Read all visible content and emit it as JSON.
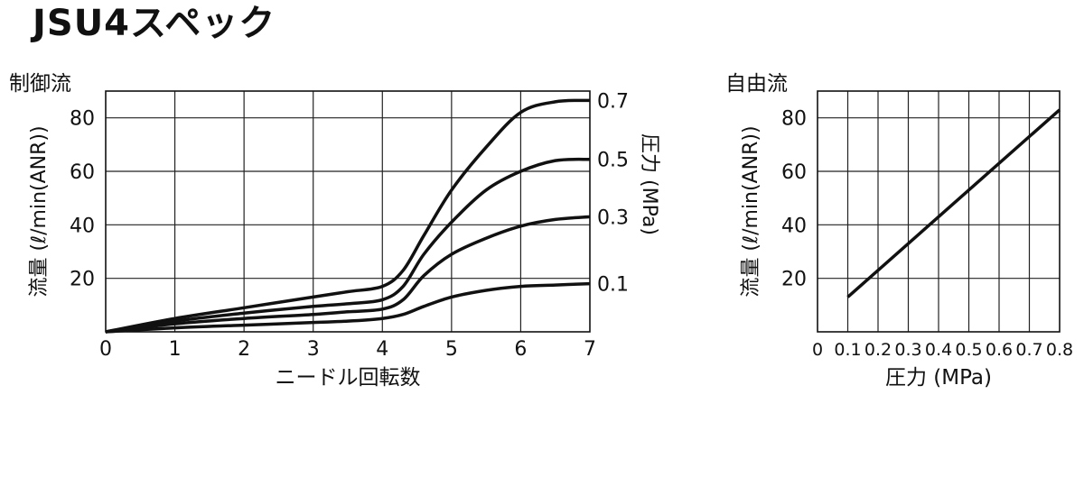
{
  "title": "JSU4スペック",
  "chart_data": [
    {
      "type": "line",
      "title": "制御流",
      "xlabel": "ニードル回転数",
      "ylabel": "流量 (ℓ/min(ANR))",
      "y2label": "圧力 (MPa)",
      "xlim": [
        0,
        7
      ],
      "ylim": [
        0,
        90
      ],
      "xticks": [
        "0",
        "1",
        "2",
        "3",
        "4",
        "5",
        "6",
        "7"
      ],
      "yticks": [
        "20",
        "40",
        "60",
        "80"
      ],
      "grid": true,
      "series": [
        {
          "name": "0.7",
          "x": [
            0,
            1,
            2,
            3,
            3.5,
            4,
            4.3,
            4.6,
            5,
            5.5,
            6,
            6.5,
            7
          ],
          "y": [
            0,
            5,
            9,
            13,
            15,
            17,
            23,
            36,
            53,
            69,
            82,
            86,
            86.5
          ]
        },
        {
          "name": "0.5",
          "x": [
            0,
            1,
            2,
            3,
            3.5,
            4,
            4.3,
            4.6,
            5,
            5.5,
            6,
            6.5,
            7
          ],
          "y": [
            0,
            4,
            7,
            9.5,
            10.5,
            12,
            17,
            29,
            41,
            53,
            60,
            64,
            64.5
          ]
        },
        {
          "name": "0.3",
          "x": [
            0,
            1,
            2,
            3,
            3.5,
            4,
            4.3,
            4.6,
            5,
            5.5,
            6,
            6.5,
            7
          ],
          "y": [
            0,
            3,
            5,
            6.5,
            7.5,
            8.5,
            12,
            21,
            29,
            35,
            39.5,
            42,
            43
          ]
        },
        {
          "name": "0.1",
          "x": [
            0,
            1,
            2,
            3,
            3.5,
            4,
            4.3,
            4.6,
            5,
            5.5,
            6,
            6.5,
            7
          ],
          "y": [
            0,
            1.5,
            2.5,
            3.5,
            4,
            5,
            6.5,
            9.5,
            13,
            15.5,
            17,
            17.5,
            18
          ]
        }
      ]
    },
    {
      "type": "line",
      "title": "自由流",
      "xlabel": "圧力 (MPa)",
      "ylabel": "流量 (ℓ/min(ANR))",
      "xlim": [
        0,
        0.8
      ],
      "ylim": [
        0,
        90
      ],
      "xticks": [
        "0",
        "0.1",
        "0.2",
        "0.3",
        "0.4",
        "0.5",
        "0.6",
        "0.7",
        "0.8"
      ],
      "yticks": [
        "20",
        "40",
        "60",
        "80"
      ],
      "grid": true,
      "series": [
        {
          "x": [
            0.1,
            0.8
          ],
          "y": [
            13,
            83
          ]
        }
      ]
    }
  ]
}
